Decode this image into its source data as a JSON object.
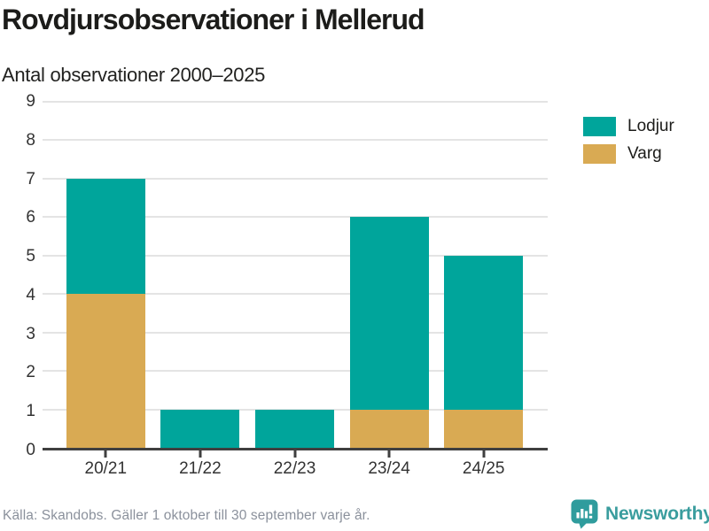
{
  "header": {
    "title": "Rovdjursobservationer i Mellerud",
    "subtitle": "Antal observationer 2000–2025"
  },
  "chart_data": {
    "type": "bar",
    "stacked": true,
    "title": "Rovdjursobservationer i Mellerud",
    "subtitle": "Antal observationer 2000–2025",
    "xlabel": "",
    "ylabel": "Antal observationer",
    "categories": [
      "20/21",
      "21/22",
      "22/23",
      "23/24",
      "24/25"
    ],
    "series": [
      {
        "name": "Lodjur",
        "color": "#00a59b",
        "values": [
          3,
          1,
          1,
          5,
          4
        ]
      },
      {
        "name": "Varg",
        "color": "#d9aa53",
        "values": [
          4,
          0,
          0,
          1,
          1
        ]
      }
    ],
    "stack_order_bottom_to_top": [
      "Varg",
      "Lodjur"
    ],
    "stack_totals": [
      7,
      1,
      1,
      6,
      5
    ],
    "ylim": [
      0,
      9
    ],
    "yticks": [
      0,
      1,
      2,
      3,
      4,
      5,
      6,
      7,
      8,
      9
    ],
    "grid": true,
    "legend_position": "top-right",
    "bar_width_fraction": 0.835
  },
  "footer": {
    "source": "Källa: Skandobs. Gäller 1 oktober till 30 september varje år.",
    "brand_name": "Newsworthy"
  },
  "colors": {
    "lodjur": "#00a59b",
    "varg": "#d9aa53",
    "axis_line": "#3f3f3f",
    "gridline": "#e4e4e4",
    "tick_text": "#333333",
    "title_text": "#1c1c1a",
    "source_text": "#8b919c",
    "brand_teal": "#3a9d9e",
    "brand_icon_teal": "#2f9c9d"
  }
}
